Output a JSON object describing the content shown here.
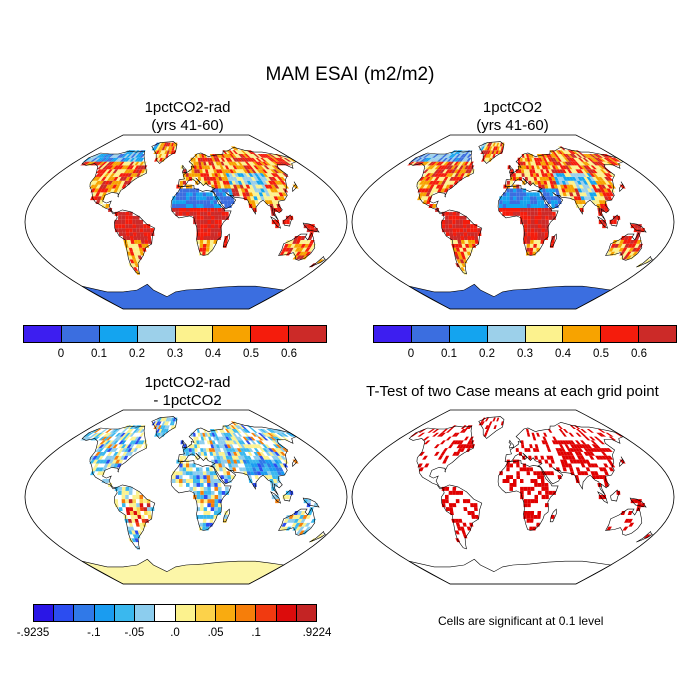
{
  "main_title": "MAM ESAI (m2/m2)",
  "panels": {
    "p1": {
      "line1": "1pctCO2-rad",
      "line2": "(yrs 41-60)"
    },
    "p2": {
      "line1": "1pctCO2",
      "line2": "(yrs 41-60)"
    },
    "p3": {
      "line1": "1pctCO2-rad",
      "line2": "- 1pctCO2"
    },
    "p4": {
      "line1": "T-Test of two Case means at each grid point"
    }
  },
  "colorbar_top": {
    "colors": [
      "#3d1ef0",
      "#3b6ee0",
      "#14a4ef",
      "#9cd0ea",
      "#fcf28e",
      "#f7a300",
      "#f51c0c",
      "#cc2a28"
    ],
    "labels": [
      "0",
      "0.1",
      "0.2",
      "0.3",
      "0.4",
      "0.5",
      "0.6"
    ]
  },
  "colorbar_diff": {
    "colors": [
      "#2a16e6",
      "#2c4df0",
      "#3079e8",
      "#1a9cf0",
      "#3ab8ee",
      "#8ccdee",
      "#ffffff",
      "#fcf28e",
      "#fcd24a",
      "#f9ab10",
      "#f67e0a",
      "#f13a10",
      "#dc0c0c",
      "#c42424"
    ],
    "labels": [
      "-.9235",
      "-.1",
      "-.05",
      ".0",
      ".05",
      ".1",
      ".9224"
    ]
  },
  "significance_note": "Cells are significant at 0.1 level",
  "colors": {
    "ocean": "#ffffff",
    "antarctica_abs": "#3b6ee0",
    "antarctica_diff": "#fcf6a8",
    "signif": "#e00000"
  }
}
